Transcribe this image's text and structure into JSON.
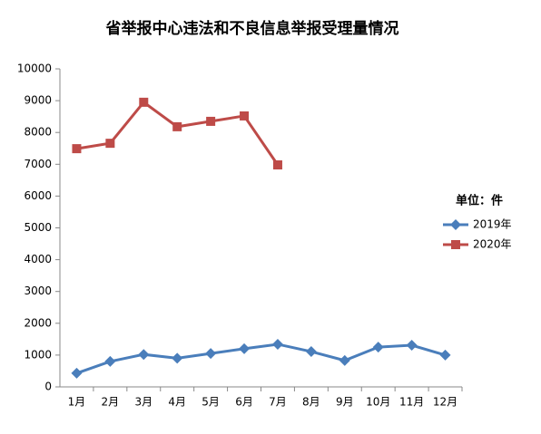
{
  "chart_data": {
    "type": "line",
    "title": "省举报中心违法和不良信息举报受理量情况",
    "legend_title": "单位：件",
    "categories": [
      "1月",
      "2月",
      "3月",
      "4月",
      "5月",
      "6月",
      "7月",
      "8月",
      "9月",
      "10月",
      "11月",
      "12月"
    ],
    "series": [
      {
        "name": "2019年",
        "color": "#4a7ebb",
        "marker": "diamond",
        "values": [
          430,
          800,
          1020,
          900,
          1050,
          1200,
          1340,
          1110,
          830,
          1250,
          1310,
          1000
        ]
      },
      {
        "name": "2020年",
        "color": "#be4b48",
        "marker": "square",
        "values": [
          7490,
          7660,
          8950,
          8180,
          8350,
          8520,
          6980,
          null,
          null,
          null,
          null,
          null
        ]
      }
    ],
    "ylim": [
      0,
      10000
    ],
    "yticks": [
      0,
      1000,
      2000,
      3000,
      4000,
      5000,
      6000,
      7000,
      8000,
      9000,
      10000
    ],
    "grid": false
  }
}
